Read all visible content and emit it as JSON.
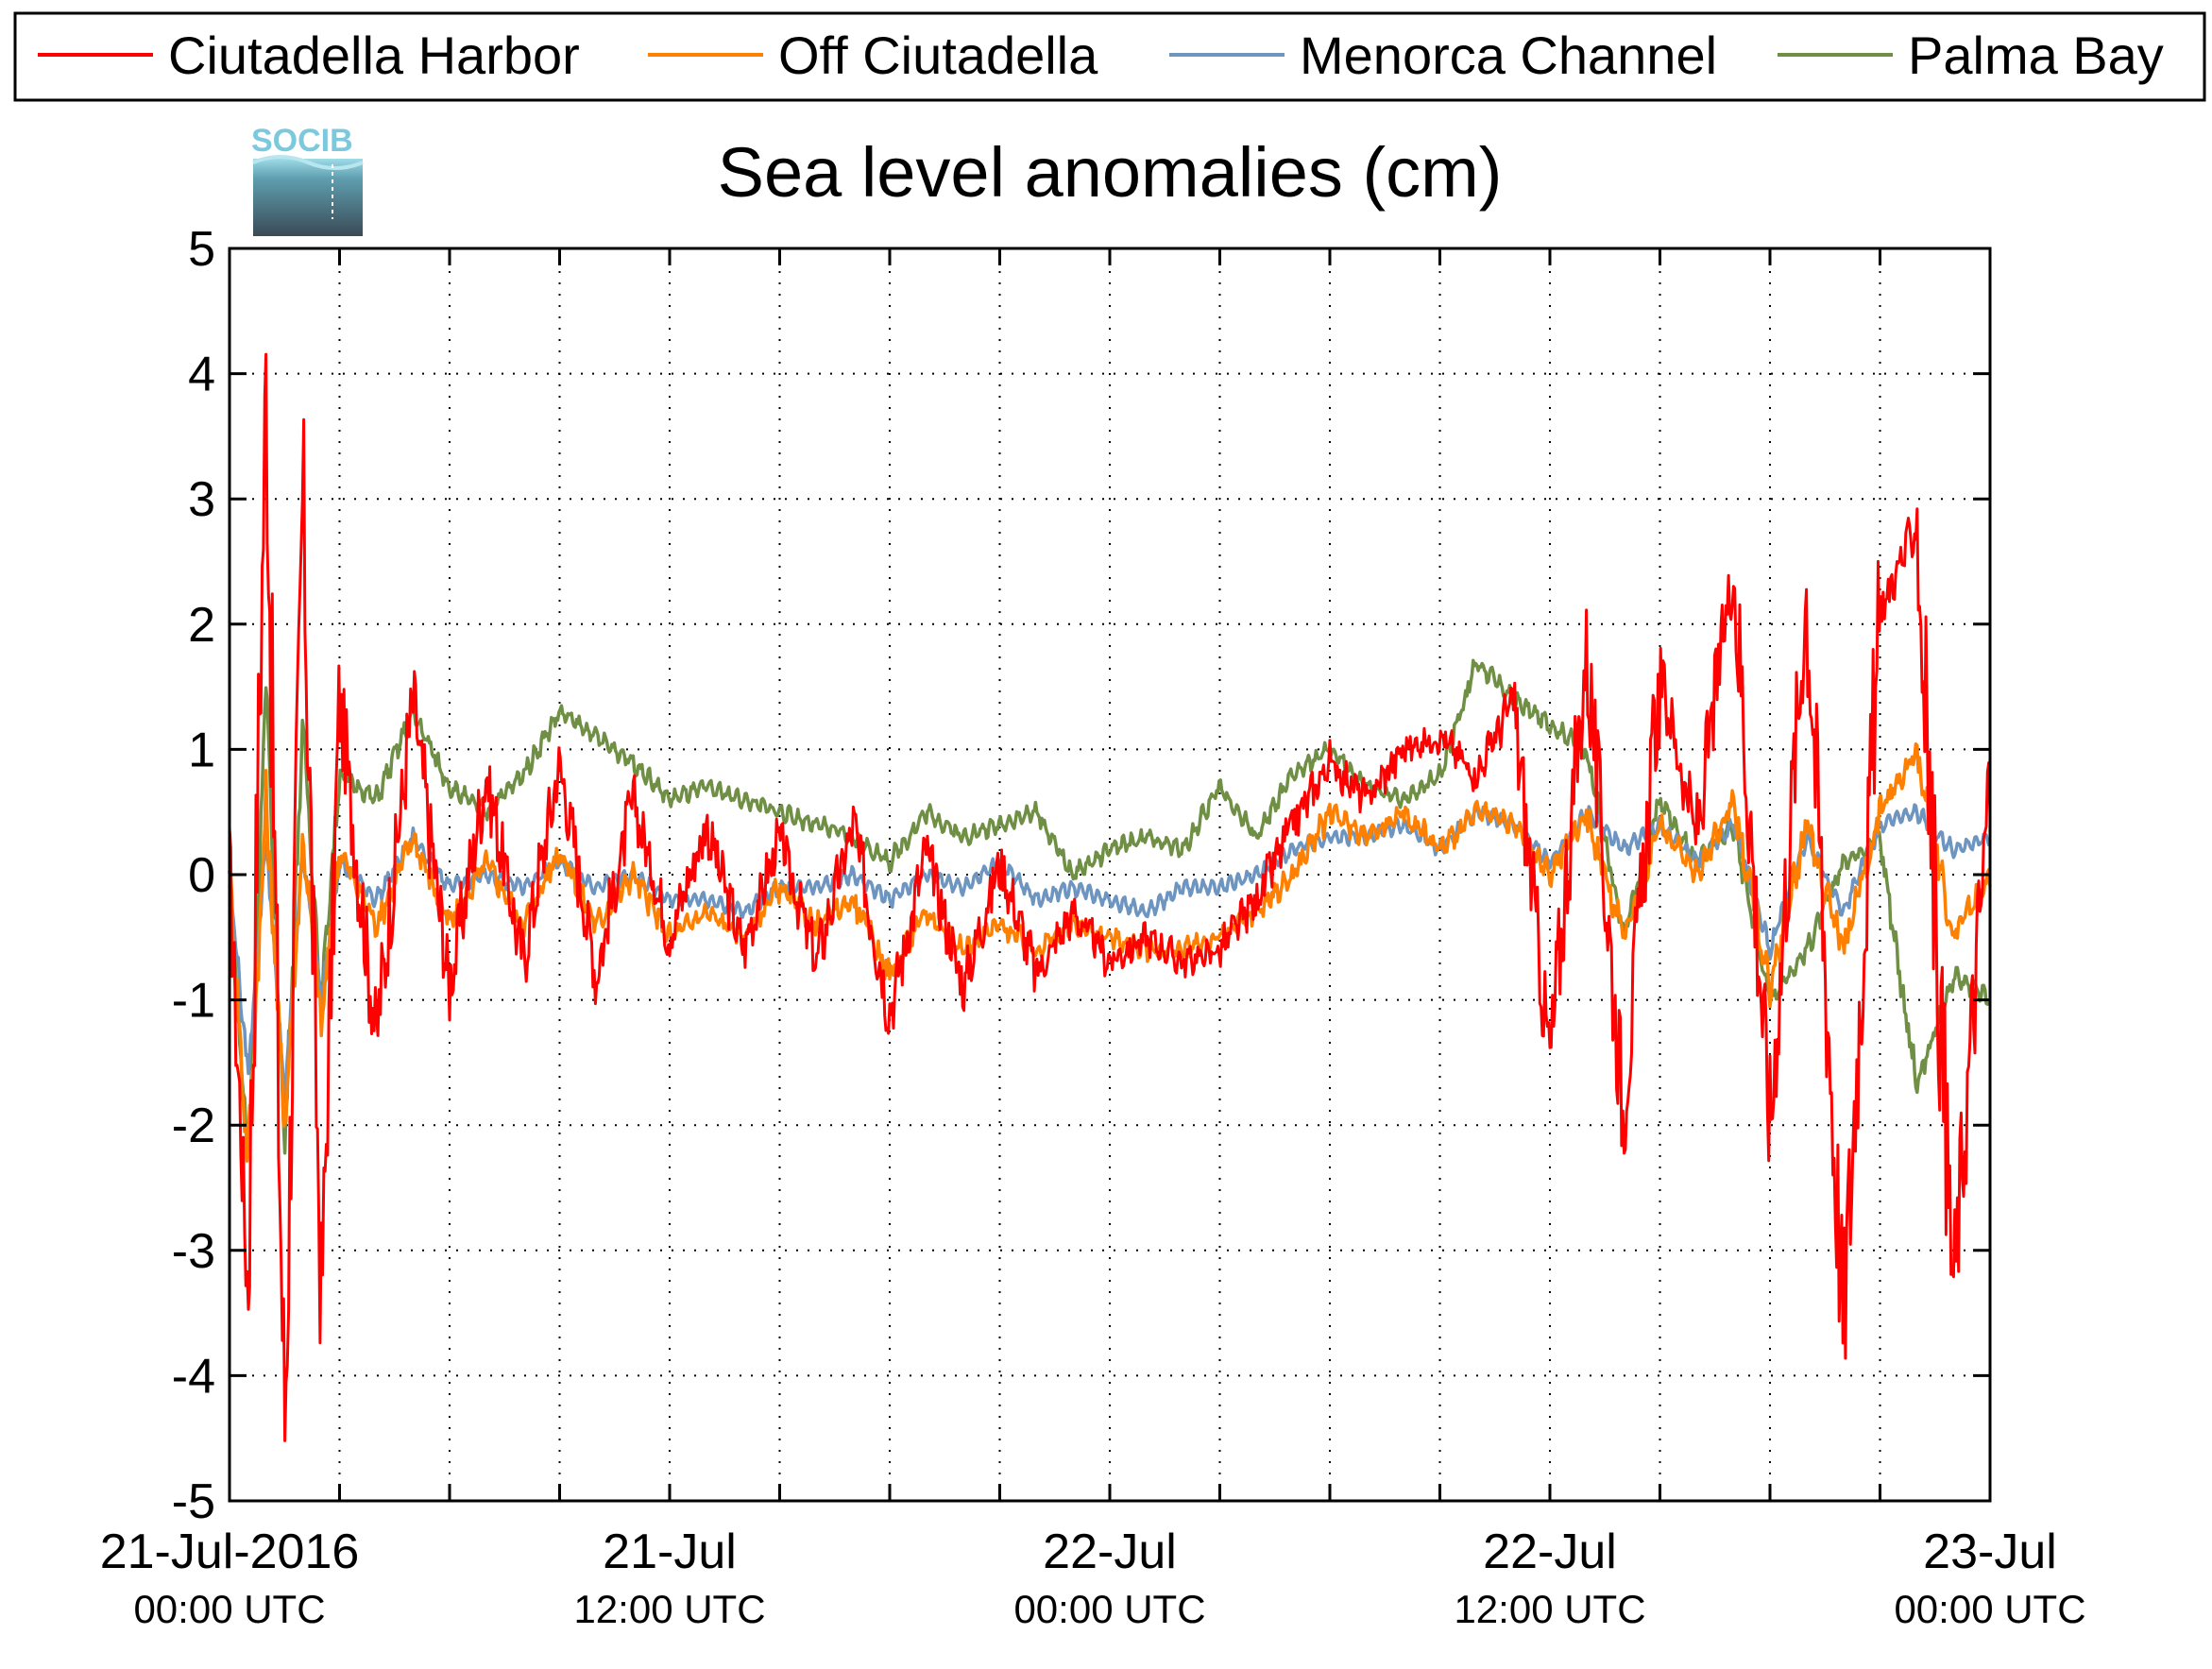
{
  "chart_data": {
    "type": "line",
    "title": "Sea level anomalies (cm)",
    "logo_text": "SOCIB",
    "xlabel": "",
    "ylabel": "",
    "x_range": [
      "2016-07-21T00:00",
      "2016-07-23T00:00"
    ],
    "ylim": [
      -5,
      5
    ],
    "yticks": [
      "5",
      "4",
      "3",
      "2",
      "1",
      "0",
      "-1",
      "-2",
      "-3",
      "-4",
      "-5"
    ],
    "xticks": [
      {
        "date": "21-Jul-2016",
        "time": "00:00 UTC"
      },
      {
        "date": "21-Jul",
        "time": "12:00 UTC"
      },
      {
        "date": "22-Jul",
        "time": "00:00 UTC"
      },
      {
        "date": "22-Jul",
        "time": "12:00 UTC"
      },
      {
        "date": "23-Jul",
        "time": "00:00 UTC"
      }
    ],
    "grid": true,
    "legend_position": "top",
    "series": [
      {
        "name": "Ciutadella Harbor",
        "color": "#ff0000",
        "x_hours": [
          0,
          0.5,
          1,
          1.5,
          2,
          2.5,
          3,
          4,
          5,
          6,
          7,
          8,
          9,
          10,
          11,
          12,
          13,
          14,
          15,
          16,
          17,
          18,
          19,
          20,
          21,
          22,
          23,
          24,
          25,
          26,
          27,
          28,
          29,
          30,
          31,
          32,
          33,
          34,
          35,
          36,
          37,
          38,
          39,
          40,
          41,
          42,
          43,
          44,
          45,
          46,
          47,
          48
        ],
        "values": [
          0,
          -3.3,
          4.0,
          -4.5,
          3.1,
          -3.4,
          1.4,
          -1.3,
          1.4,
          -0.9,
          0.8,
          -0.7,
          0.9,
          -0.8,
          0.6,
          -0.5,
          0.4,
          -0.6,
          0.3,
          -0.7,
          0.4,
          -1.1,
          0.2,
          -0.9,
          0.1,
          -0.8,
          -0.3,
          -0.7,
          -0.5,
          -0.7,
          -0.6,
          -0.2,
          0.4,
          0.9,
          0.6,
          1.0,
          1.1,
          0.8,
          1.4,
          -1.5,
          1.8,
          -1.9,
          1.6,
          0.3,
          2.5,
          -2.0,
          2.3,
          -3.6,
          2.1,
          2.8,
          -3.3,
          0.8
        ]
      },
      {
        "name": "Off Ciutadella",
        "color": "#ff8000",
        "x_hours": [
          0,
          0.5,
          1,
          1.5,
          2,
          2.5,
          3,
          4,
          5,
          6,
          7,
          8,
          9,
          10,
          11,
          12,
          13,
          14,
          15,
          16,
          17,
          18,
          19,
          20,
          21,
          22,
          23,
          24,
          25,
          26,
          27,
          28,
          29,
          30,
          31,
          32,
          33,
          34,
          35,
          36,
          37,
          38,
          39,
          40,
          41,
          42,
          43,
          44,
          45,
          46,
          47,
          48
        ],
        "values": [
          0,
          -2.3,
          0.6,
          -2.0,
          0.3,
          -1.2,
          0.2,
          -0.4,
          0.3,
          -0.4,
          0.1,
          -0.4,
          0.2,
          -0.4,
          0.0,
          -0.5,
          -0.3,
          -0.5,
          -0.1,
          -0.4,
          -0.2,
          -0.8,
          -0.3,
          -0.6,
          -0.4,
          -0.6,
          -0.4,
          -0.5,
          -0.6,
          -0.6,
          -0.5,
          -0.3,
          0.0,
          0.5,
          0.3,
          0.5,
          0.2,
          0.5,
          0.4,
          0.0,
          0.5,
          -0.5,
          0.4,
          0.0,
          0.6,
          -0.9,
          0.4,
          -0.6,
          0.5,
          1.0,
          -0.5,
          0.0
        ]
      },
      {
        "name": "Menorca Channel",
        "color": "#6d95c0",
        "x_hours": [
          0,
          0.5,
          1,
          1.5,
          2,
          2.5,
          3,
          4,
          5,
          6,
          7,
          8,
          9,
          10,
          11,
          12,
          13,
          14,
          15,
          16,
          17,
          18,
          19,
          20,
          21,
          22,
          23,
          24,
          25,
          26,
          27,
          28,
          29,
          30,
          31,
          32,
          33,
          34,
          35,
          36,
          37,
          38,
          39,
          40,
          41,
          42,
          43,
          44,
          45,
          46,
          47,
          48
        ],
        "values": [
          0,
          -1.6,
          0.3,
          -1.8,
          0.2,
          -1.0,
          0.1,
          -0.2,
          0.3,
          -0.1,
          0.0,
          -0.1,
          0.1,
          -0.1,
          0.0,
          -0.2,
          -0.2,
          -0.3,
          -0.1,
          -0.1,
          0.0,
          -0.2,
          0.0,
          -0.1,
          0.1,
          -0.2,
          -0.1,
          -0.2,
          -0.3,
          -0.1,
          -0.1,
          0.0,
          0.2,
          0.3,
          0.3,
          0.4,
          0.2,
          0.5,
          0.4,
          0.1,
          0.5,
          0.2,
          0.4,
          0.1,
          0.4,
          -0.6,
          0.3,
          -0.3,
          0.4,
          0.5,
          0.2,
          0.3
        ]
      },
      {
        "name": "Palma Bay",
        "color": "#6f8f45",
        "x_hours": [
          0,
          0.5,
          1,
          1.5,
          2,
          2.5,
          3,
          4,
          5,
          6,
          7,
          8,
          9,
          10,
          11,
          12,
          13,
          14,
          15,
          16,
          17,
          18,
          19,
          20,
          21,
          22,
          23,
          24,
          25,
          26,
          27,
          28,
          29,
          30,
          31,
          32,
          33,
          34,
          35,
          36,
          37,
          38,
          39,
          40,
          41,
          42,
          43,
          44,
          45,
          46,
          47,
          48
        ],
        "values": [
          0,
          -2.3,
          1.5,
          -2.2,
          1.2,
          -1.0,
          0.8,
          0.6,
          1.3,
          0.7,
          0.5,
          0.8,
          1.3,
          1.1,
          0.9,
          0.6,
          0.7,
          0.6,
          0.5,
          0.4,
          0.3,
          0.1,
          0.5,
          0.3,
          0.4,
          0.5,
          0.0,
          0.2,
          0.3,
          0.2,
          0.7,
          0.3,
          0.8,
          1.0,
          0.7,
          0.6,
          0.8,
          1.7,
          1.4,
          1.2,
          1.0,
          -0.5,
          0.6,
          0.1,
          0.4,
          -1.0,
          -0.6,
          0.1,
          0.3,
          -1.7,
          -0.8,
          -1.0
        ]
      }
    ]
  }
}
